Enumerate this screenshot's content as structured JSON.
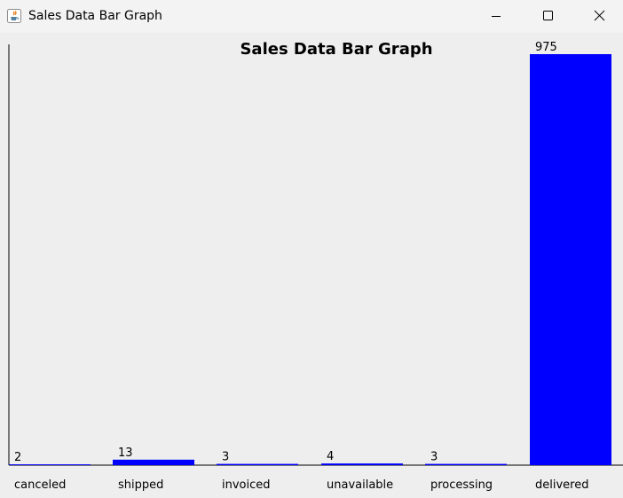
{
  "window": {
    "title": "Sales Data Bar Graph",
    "icon": "java-cup-icon"
  },
  "controls": {
    "minimize": "minimize-icon",
    "maximize": "maximize-icon",
    "close": "close-icon"
  },
  "chart_data": {
    "type": "bar",
    "title": "Sales Data Bar Graph",
    "categories": [
      "canceled",
      "shipped",
      "invoiced",
      "unavailable",
      "processing",
      "delivered"
    ],
    "values": [
      2,
      13,
      3,
      4,
      3,
      975
    ],
    "ylim": [
      0,
      975
    ],
    "bar_color": "#0000ff",
    "axis_color": "#000000",
    "grid": false,
    "legend": "none"
  }
}
